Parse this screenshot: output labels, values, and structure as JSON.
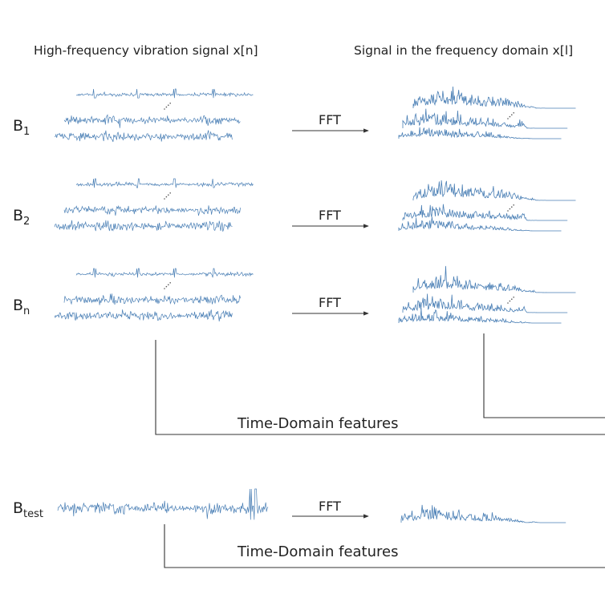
{
  "headers": {
    "time_domain": "High-frequency vibration signal x[n]",
    "freq_domain": "Signal in the frequency domain x[l]"
  },
  "rows": [
    {
      "base": "B",
      "sub": "1",
      "fft": "FFT"
    },
    {
      "base": "B",
      "sub": "2",
      "fft": "FFT"
    },
    {
      "base": "B",
      "sub": "n",
      "fft": "FFT"
    }
  ],
  "test": {
    "base": "B",
    "sub": "test",
    "fft": "FFT"
  },
  "features": {
    "train": "Time-Domain features",
    "test": "Time-Domain features"
  },
  "colors": {
    "signal": "#4a7fb5",
    "line": "#333333"
  }
}
